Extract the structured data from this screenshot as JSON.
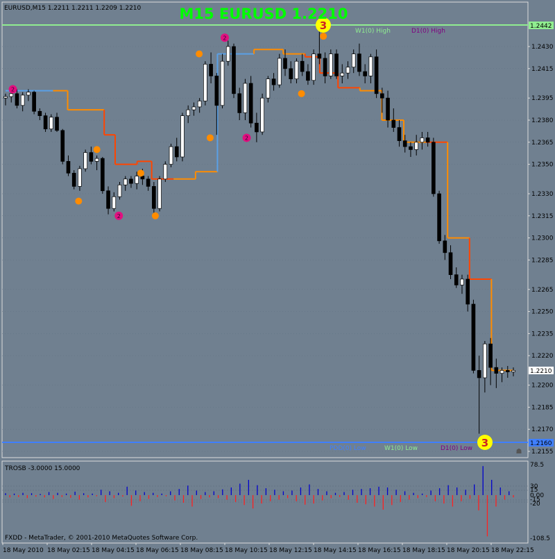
{
  "window": {
    "symbol_info": "EURUSD,M15  1.2211 1.2211 1.2209 1.2210",
    "title": "M15 EURUSD 1.2210",
    "current_price": "1.2210"
  },
  "levels": {
    "top_label_w1": "W1(0) High",
    "top_label_d1": "D1(0) High",
    "top_price": "1.2442",
    "bottom_label_w1": "W1(0) Low",
    "bottom_label_d1": "D1(0) Low",
    "bottom_label_hidden": "PDD(0) Low",
    "bottom_price": "1.2160",
    "top_marker": "3",
    "bottom_marker": "3"
  },
  "price_axis": [
    "1.2430",
    "1.2415",
    "1.2395",
    "1.2380",
    "1.2365",
    "1.2350",
    "1.2330",
    "1.2315",
    "1.2300",
    "1.2285",
    "1.2265",
    "1.2250",
    "1.2235",
    "1.2220",
    "1.2200",
    "1.2185",
    "1.2170",
    "1.2155"
  ],
  "indicator": {
    "name": "TROSB -3.0000 15.0000",
    "axis": [
      "78.5",
      "30",
      "15",
      "0.00",
      "-15",
      "-20",
      "-108.5"
    ],
    "values": [
      5,
      -6,
      4,
      -5,
      6,
      -8,
      5,
      -4,
      3,
      -6,
      8,
      -10,
      6,
      -5,
      4,
      -7,
      9,
      -12,
      5,
      -6,
      4,
      -3,
      14,
      -18,
      10,
      -8,
      6,
      -4,
      22,
      -28,
      12,
      -16,
      8,
      -10,
      6,
      -5,
      4,
      -3,
      10,
      -14,
      16,
      -20,
      25,
      -30,
      12,
      -10,
      8,
      -6,
      10,
      -8,
      15,
      -12,
      20,
      -18,
      30,
      -26,
      40,
      -35,
      26,
      -22,
      18,
      -16,
      14,
      -12,
      10,
      -8,
      12,
      -16,
      20,
      -25,
      28,
      -22,
      16,
      -14,
      10,
      -8,
      6,
      -5,
      8,
      -12,
      14,
      -20,
      16,
      -24,
      18,
      -30,
      22,
      -38,
      20,
      -26,
      14,
      -18,
      10,
      -12,
      6,
      -8,
      4,
      -5,
      12,
      -16,
      18,
      -22,
      26,
      -30,
      20,
      -16,
      14,
      -10,
      28,
      -40,
      76,
      -108,
      40,
      -30,
      20,
      -12,
      10,
      -6
    ]
  },
  "footer": "FXDD - MetaTrader, © 2001-2010 MetaQuotes Software Corp.",
  "time_axis": [
    "18 May 2010",
    "18 May 02:15",
    "18 May 04:15",
    "18 May 06:15",
    "18 May 08:15",
    "18 May 10:15",
    "18 May 12:15",
    "18 May 14:15",
    "18 May 16:15",
    "18 May 18:15",
    "18 May 20:15",
    "18 May 22:15"
  ],
  "colors": {
    "background": "#708090",
    "title": "#00FF00",
    "candle_up": "#FFFFFF",
    "candle_down": "#000000",
    "grid": "#5F6F80",
    "top_line": "#90EE90",
    "bottom_line": "#3F7FFF",
    "orange": "#FF8C00",
    "red": "#FF4500",
    "blue": "#5AA0E6",
    "magenta": "#E0107F",
    "yellow": "#FFFF00",
    "indicator_up": "#0000CD",
    "indicator_down": "#FF2020"
  },
  "candles": [
    [
      1.2395,
      1.2398,
      1.239,
      1.2396
    ],
    [
      1.2396,
      1.24,
      1.2392,
      1.2398
    ],
    [
      1.2398,
      1.2401,
      1.2388,
      1.239
    ],
    [
      1.239,
      1.2399,
      1.2386,
      1.2397
    ],
    [
      1.2397,
      1.2401,
      1.2393,
      1.2399
    ],
    [
      1.2399,
      1.24,
      1.2384,
      1.2386
    ],
    [
      1.2386,
      1.2388,
      1.238,
      1.2383
    ],
    [
      1.2383,
      1.2385,
      1.2372,
      1.2374
    ],
    [
      1.2374,
      1.2384,
      1.2372,
      1.2382
    ],
    [
      1.2382,
      1.2385,
      1.2372,
      1.2373
    ],
    [
      1.2373,
      1.2374,
      1.235,
      1.2352
    ],
    [
      1.2352,
      1.2356,
      1.2342,
      1.2344
    ],
    [
      1.2344,
      1.2346,
      1.2333,
      1.2335
    ],
    [
      1.2335,
      1.2349,
      1.2332,
      1.2347
    ],
    [
      1.2347,
      1.236,
      1.2345,
      1.2358
    ],
    [
      1.2358,
      1.2362,
      1.235,
      1.2352
    ],
    [
      1.2352,
      1.2356,
      1.2346,
      1.2354
    ],
    [
      1.2354,
      1.2355,
      1.233,
      1.2332
    ],
    [
      1.2332,
      1.2335,
      1.2316,
      1.232
    ],
    [
      1.232,
      1.2331,
      1.2318,
      1.2328
    ],
    [
      1.2328,
      1.2338,
      1.2326,
      1.2336
    ],
    [
      1.2336,
      1.2342,
      1.2332,
      1.234
    ],
    [
      1.234,
      1.2342,
      1.2334,
      1.2337
    ],
    [
      1.2337,
      1.2345,
      1.2333,
      1.2342
    ],
    [
      1.2342,
      1.2347,
      1.2336,
      1.234
    ],
    [
      1.234,
      1.2342,
      1.2332,
      1.2335
    ],
    [
      1.2335,
      1.2338,
      1.2314,
      1.232
    ],
    [
      1.232,
      1.2342,
      1.2318,
      1.234
    ],
    [
      1.234,
      1.2352,
      1.2338,
      1.235
    ],
    [
      1.235,
      1.2364,
      1.2348,
      1.2362
    ],
    [
      1.2362,
      1.2368,
      1.2352,
      1.2355
    ],
    [
      1.2355,
      1.2385,
      1.2352,
      1.2383
    ],
    [
      1.2383,
      1.239,
      1.2378,
      1.2387
    ],
    [
      1.2387,
      1.2392,
      1.2383,
      1.2389
    ],
    [
      1.2389,
      1.2395,
      1.2385,
      1.2393
    ],
    [
      1.2393,
      1.242,
      1.239,
      1.2418
    ],
    [
      1.2418,
      1.2426,
      1.2405,
      1.241
    ],
    [
      1.241,
      1.2412,
      1.237,
      1.239
    ],
    [
      1.239,
      1.2425,
      1.2388,
      1.242
    ],
    [
      1.242,
      1.2434,
      1.2417,
      1.243
    ],
    [
      1.243,
      1.2432,
      1.2395,
      1.2398
    ],
    [
      1.2398,
      1.2402,
      1.238,
      1.2385
    ],
    [
      1.2385,
      1.2408,
      1.238,
      1.2405
    ],
    [
      1.2405,
      1.241,
      1.2375,
      1.2378
    ],
    [
      1.2378,
      1.2385,
      1.2365,
      1.2372
    ],
    [
      1.2372,
      1.2398,
      1.237,
      1.2395
    ],
    [
      1.2395,
      1.241,
      1.2392,
      1.2408
    ],
    [
      1.2408,
      1.2412,
      1.24,
      1.2404
    ],
    [
      1.2404,
      1.2425,
      1.2402,
      1.2422
    ],
    [
      1.2422,
      1.2428,
      1.241,
      1.2415
    ],
    [
      1.2415,
      1.242,
      1.2405,
      1.2408
    ],
    [
      1.2408,
      1.2422,
      1.2405,
      1.242
    ],
    [
      1.242,
      1.2425,
      1.241,
      1.2413
    ],
    [
      1.2413,
      1.2418,
      1.2404,
      1.2407
    ],
    [
      1.2407,
      1.2428,
      1.2404,
      1.2425
    ],
    [
      1.2425,
      1.244,
      1.2418,
      1.2422
    ],
    [
      1.2422,
      1.2426,
      1.2405,
      1.241
    ],
    [
      1.241,
      1.2428,
      1.2408,
      1.2425
    ],
    [
      1.2425,
      1.2428,
      1.2408,
      1.241
    ],
    [
      1.241,
      1.2418,
      1.2405,
      1.2412
    ],
    [
      1.2412,
      1.242,
      1.2408,
      1.2416
    ],
    [
      1.2416,
      1.2428,
      1.2412,
      1.2425
    ],
    [
      1.2425,
      1.2432,
      1.241,
      1.2413
    ],
    [
      1.2413,
      1.2418,
      1.2405,
      1.241
    ],
    [
      1.241,
      1.2425,
      1.2405,
      1.2423
    ],
    [
      1.2423,
      1.2428,
      1.2395,
      1.2398
    ],
    [
      1.2398,
      1.2402,
      1.2385,
      1.2395
    ],
    [
      1.2395,
      1.24,
      1.2375,
      1.238
    ],
    [
      1.238,
      1.2388,
      1.2372,
      1.2375
    ],
    [
      1.2375,
      1.238,
      1.2362,
      1.2366
    ],
    [
      1.2366,
      1.237,
      1.2358,
      1.2362
    ],
    [
      1.2362,
      1.2365,
      1.2355,
      1.236
    ],
    [
      1.236,
      1.237,
      1.2356,
      1.2365
    ],
    [
      1.2365,
      1.2372,
      1.236,
      1.2368
    ],
    [
      1.2368,
      1.2372,
      1.2362,
      1.2365
    ],
    [
      1.2365,
      1.2368,
      1.2328,
      1.233
    ],
    [
      1.233,
      1.2332,
      1.2296,
      1.2298
    ],
    [
      1.2298,
      1.2302,
      1.2285,
      1.229
    ],
    [
      1.229,
      1.2295,
      1.2272,
      1.2275
    ],
    [
      1.2275,
      1.228,
      1.2266,
      1.2268
    ],
    [
      1.2268,
      1.2275,
      1.2262,
      1.2272
    ],
    [
      1.2272,
      1.2275,
      1.225,
      1.2255
    ],
    [
      1.2255,
      1.2258,
      1.2208,
      1.221
    ],
    [
      1.221,
      1.222,
      1.2167,
      1.2205
    ],
    [
      1.2205,
      1.223,
      1.2195,
      1.2228
    ],
    [
      1.2228,
      1.2232,
      1.22,
      1.2212
    ],
    [
      1.2212,
      1.2218,
      1.2198,
      1.2208
    ],
    [
      1.2208,
      1.2212,
      1.2202,
      1.221
    ],
    [
      1.221,
      1.2213,
      1.2205,
      1.2209
    ],
    [
      1.2209,
      1.2212,
      1.2206,
      1.221
    ]
  ],
  "upper_steps": [
    [
      0,
      13,
      1.24,
      "blue"
    ],
    [
      13,
      17,
      1.24,
      "orange"
    ],
    [
      17,
      27,
      1.2387,
      "orange"
    ],
    [
      27,
      30,
      1.237,
      "red"
    ],
    [
      30,
      36,
      1.235,
      "red"
    ],
    [
      36,
      40,
      1.2352,
      "red"
    ],
    [
      40,
      46,
      1.234,
      "red"
    ],
    [
      46,
      52,
      1.234,
      "orange"
    ],
    [
      52,
      58,
      1.2345,
      "orange"
    ],
    [
      58,
      68,
      1.2425,
      "blue"
    ],
    [
      68,
      76,
      1.2428,
      "orange"
    ],
    [
      76,
      82,
      1.2425,
      "orange"
    ],
    [
      82,
      86,
      1.2423,
      "red"
    ],
    [
      86,
      91,
      1.2412,
      "red"
    ],
    [
      91,
      97,
      1.2402,
      "red"
    ],
    [
      97,
      103,
      1.24,
      "orange"
    ],
    [
      103,
      109,
      1.238,
      "orange"
    ],
    [
      109,
      115,
      1.2365,
      "orange"
    ],
    [
      115,
      121,
      1.2365,
      "red"
    ],
    [
      121,
      127,
      1.23,
      "orange"
    ],
    [
      127,
      133,
      1.2272,
      "red"
    ],
    [
      133,
      139,
      1.221,
      "orange"
    ]
  ],
  "markers": [
    {
      "i": 2,
      "p": 1.2401,
      "c": "magenta",
      "t": "2"
    },
    {
      "i": 25,
      "p": 1.236,
      "c": "orange",
      "t": ""
    },
    {
      "i": 20,
      "p": 1.2325,
      "c": "orange",
      "t": ""
    },
    {
      "i": 31,
      "p": 1.2315,
      "c": "magenta",
      "t": "2"
    },
    {
      "i": 37,
      "p": 1.2344,
      "c": "orange",
      "t": ""
    },
    {
      "i": 41,
      "p": 1.2315,
      "c": "orange",
      "t": ""
    },
    {
      "i": 53,
      "p": 1.2425,
      "c": "orange",
      "t": ""
    },
    {
      "i": 56,
      "p": 1.2368,
      "c": "orange",
      "t": ""
    },
    {
      "i": 60,
      "p": 1.2436,
      "c": "magenta",
      "t": "2"
    },
    {
      "i": 66,
      "p": 1.2368,
      "c": "magenta",
      "t": "2"
    },
    {
      "i": 81,
      "p": 1.2398,
      "c": "orange",
      "t": ""
    },
    {
      "i": 87,
      "p": 1.2437,
      "c": "orange",
      "t": ""
    }
  ]
}
